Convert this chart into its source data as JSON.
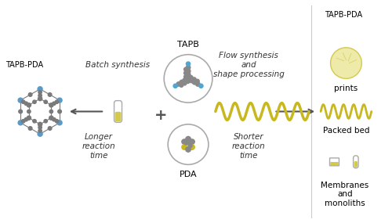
{
  "bg_color": "#ffffff",
  "text_color": "#000000",
  "yellow_color": "#d4c84a",
  "yellow_light": "#e8e48a",
  "gray_color": "#888888",
  "gray_dark": "#555555",
  "blue_accent": "#4da6d4",
  "circle_edge": "#aaaaaa",
  "arrow_color": "#555555",
  "labels": {
    "TAPB_top": "TAPB",
    "TAPB_PDA_left": "TAPB-PDA",
    "TAPB_PDA_right": "TAPB-PDA",
    "batch": "Batch synthesis",
    "flow": "Flow synthesis\nand\nshape processing",
    "longer": "Longer\nreaction\ntime",
    "shorter": "Shorter\nreaction\ntime",
    "PDA": "PDA",
    "prints": "prints",
    "packed_bed": "Packed bed",
    "membranes": "Membranes\nand\nmonoliths"
  },
  "figsize": [
    5.0,
    2.85
  ],
  "dpi": 100
}
